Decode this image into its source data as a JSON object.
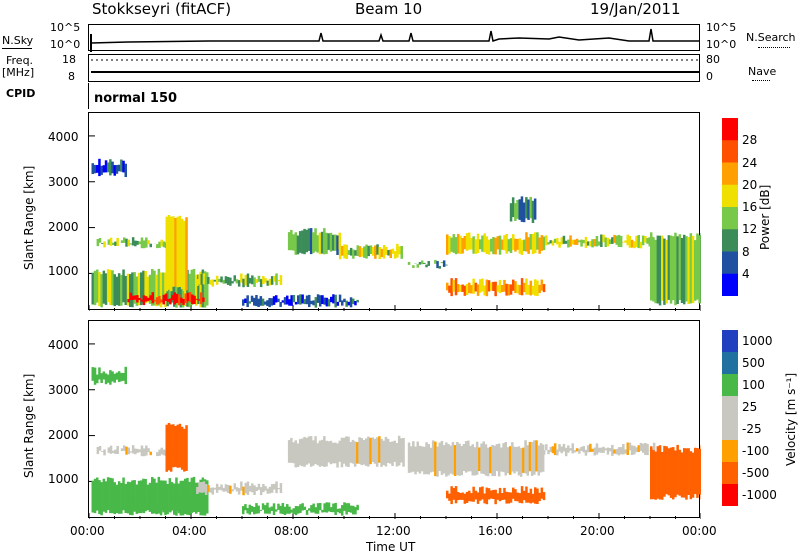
{
  "header": {
    "station": "Stokkseyri (fitACF)",
    "beam": "Beam 10",
    "date": "19/Jan/2011"
  },
  "top_panels": {
    "nsky_label": "N.Sky",
    "nsearch_label": "N.Search",
    "nsky_ticks": [
      "10^5",
      "10^0"
    ],
    "nsky_right_ticks": [
      "10^5",
      "10^0"
    ],
    "freq_label": "Freq.",
    "freq_unit": "[MHz]",
    "freq_ticks": [
      "18",
      "8"
    ],
    "nave_label": "Nave",
    "nave_ticks": [
      "80",
      "0"
    ],
    "cpid_label": "CPID",
    "cpid_value": "normal 150"
  },
  "xaxis": {
    "label": "Time UT",
    "ticks": [
      "00:00",
      "04:00",
      "08:00",
      "12:00",
      "16:00",
      "20:00",
      "00:00"
    ]
  },
  "colors": {
    "power": [
      "#0000ff",
      "#2050a0",
      "#3c8c5a",
      "#78c84a",
      "#f0e000",
      "#ffa000",
      "#ff5000",
      "#ff0000"
    ],
    "velocity": [
      "#ff0000",
      "#ff6000",
      "#ffa000",
      "#c8c8c0",
      "#c8c8c0",
      "#48b848",
      "#2070a0",
      "#2040c0"
    ]
  },
  "chart_data": [
    {
      "type": "heatmap",
      "name": "power",
      "ylabel": "Slant Range [km]",
      "yticks": [
        "1000",
        "2000",
        "3000",
        "4000"
      ],
      "ylim": [
        180,
        4500
      ],
      "xlim": [
        0,
        24
      ],
      "colorbar_label": "Power [dB]",
      "colorbar_ticks": [
        "4",
        "8",
        "12",
        "16",
        "20",
        "24",
        "28"
      ],
      "regions": [
        {
          "t0": 0.1,
          "t1": 4.6,
          "r0": 250,
          "r1": 1100,
          "v": 14
        },
        {
          "t0": 1.5,
          "t1": 4.5,
          "r0": 300,
          "r1": 600,
          "v": 30
        },
        {
          "t0": 0.3,
          "t1": 3.3,
          "r0": 1550,
          "r1": 1800,
          "v": 14
        },
        {
          "t0": 3.0,
          "t1": 3.8,
          "r0": 600,
          "r1": 2300,
          "v": 20
        },
        {
          "t0": 4.2,
          "t1": 7.5,
          "r0": 700,
          "r1": 1000,
          "v": 14
        },
        {
          "t0": 7.8,
          "t1": 9.8,
          "r0": 1400,
          "r1": 2000,
          "v": 12
        },
        {
          "t0": 9.8,
          "t1": 12.3,
          "r0": 1300,
          "r1": 1650,
          "v": 16
        },
        {
          "t0": 12.5,
          "t1": 14.0,
          "r0": 1100,
          "r1": 1300,
          "v": 10
        },
        {
          "t0": 14.0,
          "t1": 17.8,
          "r0": 1400,
          "r1": 1900,
          "v": 18
        },
        {
          "t0": 14.0,
          "t1": 17.8,
          "r0": 500,
          "r1": 900,
          "v": 22
        },
        {
          "t0": 16.5,
          "t1": 17.5,
          "r0": 2100,
          "r1": 2700,
          "v": 10
        },
        {
          "t0": 17.8,
          "t1": 22.2,
          "r0": 1550,
          "r1": 1850,
          "v": 16
        },
        {
          "t0": 22.0,
          "t1": 24.0,
          "r0": 300,
          "r1": 1900,
          "v": 14
        },
        {
          "t0": 6.0,
          "t1": 10.5,
          "r0": 250,
          "r1": 550,
          "v": 6
        },
        {
          "t0": 0.1,
          "t1": 1.4,
          "r0": 3100,
          "r1": 3500,
          "v": 6
        }
      ]
    },
    {
      "type": "heatmap",
      "name": "velocity",
      "ylabel": "Slant Range [km]",
      "yticks": [
        "1000",
        "2000",
        "3000",
        "4000"
      ],
      "ylim": [
        180,
        4500
      ],
      "xlim": [
        0,
        24
      ],
      "colorbar_label": "Velocity [m s⁻¹]",
      "colorbar_ticks": [
        "1000",
        "500",
        "100",
        "25",
        "-25",
        "-100",
        "-500",
        "-1000"
      ],
      "regions": [
        {
          "t0": 0.1,
          "t1": 4.6,
          "r0": 250,
          "r1": 1100,
          "v": 200
        },
        {
          "t0": 1.5,
          "t1": 4.5,
          "r0": 300,
          "r1": 600,
          "v": 150
        },
        {
          "t0": 0.3,
          "t1": 3.3,
          "r0": 1550,
          "r1": 1800,
          "v": 0
        },
        {
          "t0": 3.0,
          "t1": 3.8,
          "r0": 1200,
          "r1": 2300,
          "v": -300
        },
        {
          "t0": 4.2,
          "t1": 7.5,
          "r0": 700,
          "r1": 1000,
          "v": 0
        },
        {
          "t0": 7.8,
          "t1": 12.3,
          "r0": 1300,
          "r1": 2000,
          "v": 0
        },
        {
          "t0": 12.5,
          "t1": 17.8,
          "r0": 1100,
          "r1": 1900,
          "v": 0
        },
        {
          "t0": 14.0,
          "t1": 17.8,
          "r0": 500,
          "r1": 900,
          "v": -300
        },
        {
          "t0": 17.8,
          "t1": 22.2,
          "r0": 1550,
          "r1": 1850,
          "v": 0
        },
        {
          "t0": 22.0,
          "t1": 24.0,
          "r0": 600,
          "r1": 1800,
          "v": -300
        },
        {
          "t0": 6.0,
          "t1": 10.5,
          "r0": 250,
          "r1": 550,
          "v": 150
        },
        {
          "t0": 0.1,
          "t1": 1.4,
          "r0": 3100,
          "r1": 3500,
          "v": 150
        }
      ]
    }
  ]
}
